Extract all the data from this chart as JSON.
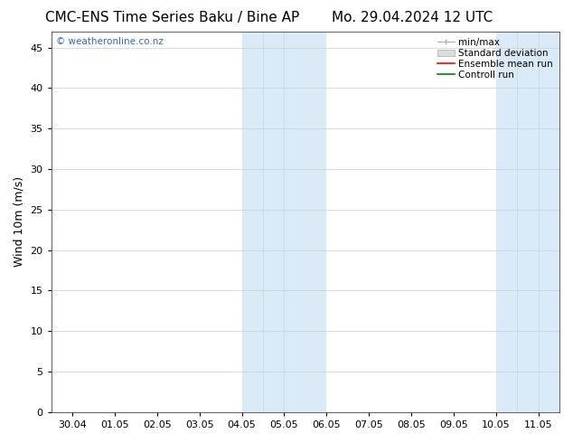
{
  "title_left": "CMC-ENS Time Series Baku / Bine AP",
  "title_right": "Mo. 29.04.2024 12 UTC",
  "ylabel": "Wind 10m (m/s)",
  "xlim_dates": [
    "30.04",
    "01.05",
    "02.05",
    "03.05",
    "04.05",
    "05.05",
    "06.05",
    "07.05",
    "08.05",
    "09.05",
    "10.05",
    "11.05"
  ],
  "ylim": [
    0,
    47
  ],
  "yticks": [
    0,
    5,
    10,
    15,
    20,
    25,
    30,
    35,
    40,
    45
  ],
  "background_color": "#ffffff",
  "plot_bg_color": "#ffffff",
  "shaded_bands": [
    {
      "xstart": 4.0,
      "xend": 6.0
    },
    {
      "xstart": 10.0,
      "xend": 11.5
    }
  ],
  "band_color": "#daeaf7",
  "internal_vlines": [
    4.5,
    5.0,
    10.5,
    11.0
  ],
  "watermark_text": "© weatheronline.co.nz",
  "watermark_color": "#3366bb",
  "legend_labels": [
    "min/max",
    "Standard deviation",
    "Ensemble mean run",
    "Controll run"
  ],
  "legend_line_color": "#aaaaaa",
  "legend_patch_face": "#dddddd",
  "legend_patch_edge": "#aaaaaa",
  "legend_red": "#ff0000",
  "legend_green": "#008800",
  "grid_color": "#cccccc",
  "title_fontsize": 11,
  "ylabel_fontsize": 9,
  "tick_fontsize": 8,
  "legend_fontsize": 7.5,
  "watermark_fontsize": 7.5,
  "spine_color": "#444444",
  "xlim": [
    -0.5,
    11.5
  ]
}
